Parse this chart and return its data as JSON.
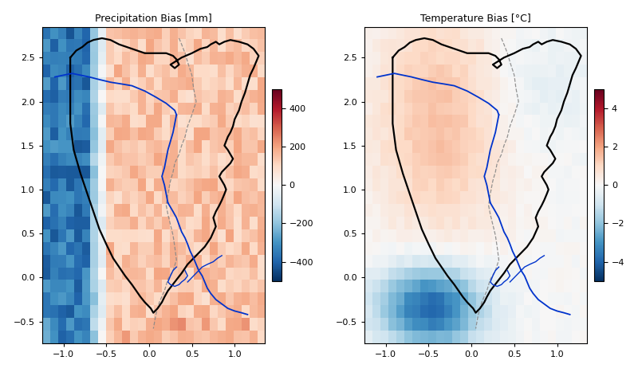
{
  "title_left": "Precipitation Bias [mm]",
  "title_right": "Temperature Bias [°C]",
  "xlim": [
    -1.25,
    1.35
  ],
  "ylim": [
    -0.75,
    2.85
  ],
  "xticks": [
    -1.0,
    -0.5,
    0.0,
    0.5,
    1.0
  ],
  "yticks": [
    -0.5,
    0.0,
    0.5,
    1.0,
    1.5,
    2.0,
    2.5
  ],
  "precip_vmin": -500,
  "precip_vmax": 500,
  "precip_colorbar_ticks": [
    -400,
    -200,
    0,
    200,
    400
  ],
  "temp_vmin": -5,
  "temp_vmax": 5,
  "temp_colorbar_ticks": [
    -4,
    -2,
    0,
    2,
    4
  ],
  "background_color": "#ffffff",
  "nx": 28,
  "ny": 25
}
